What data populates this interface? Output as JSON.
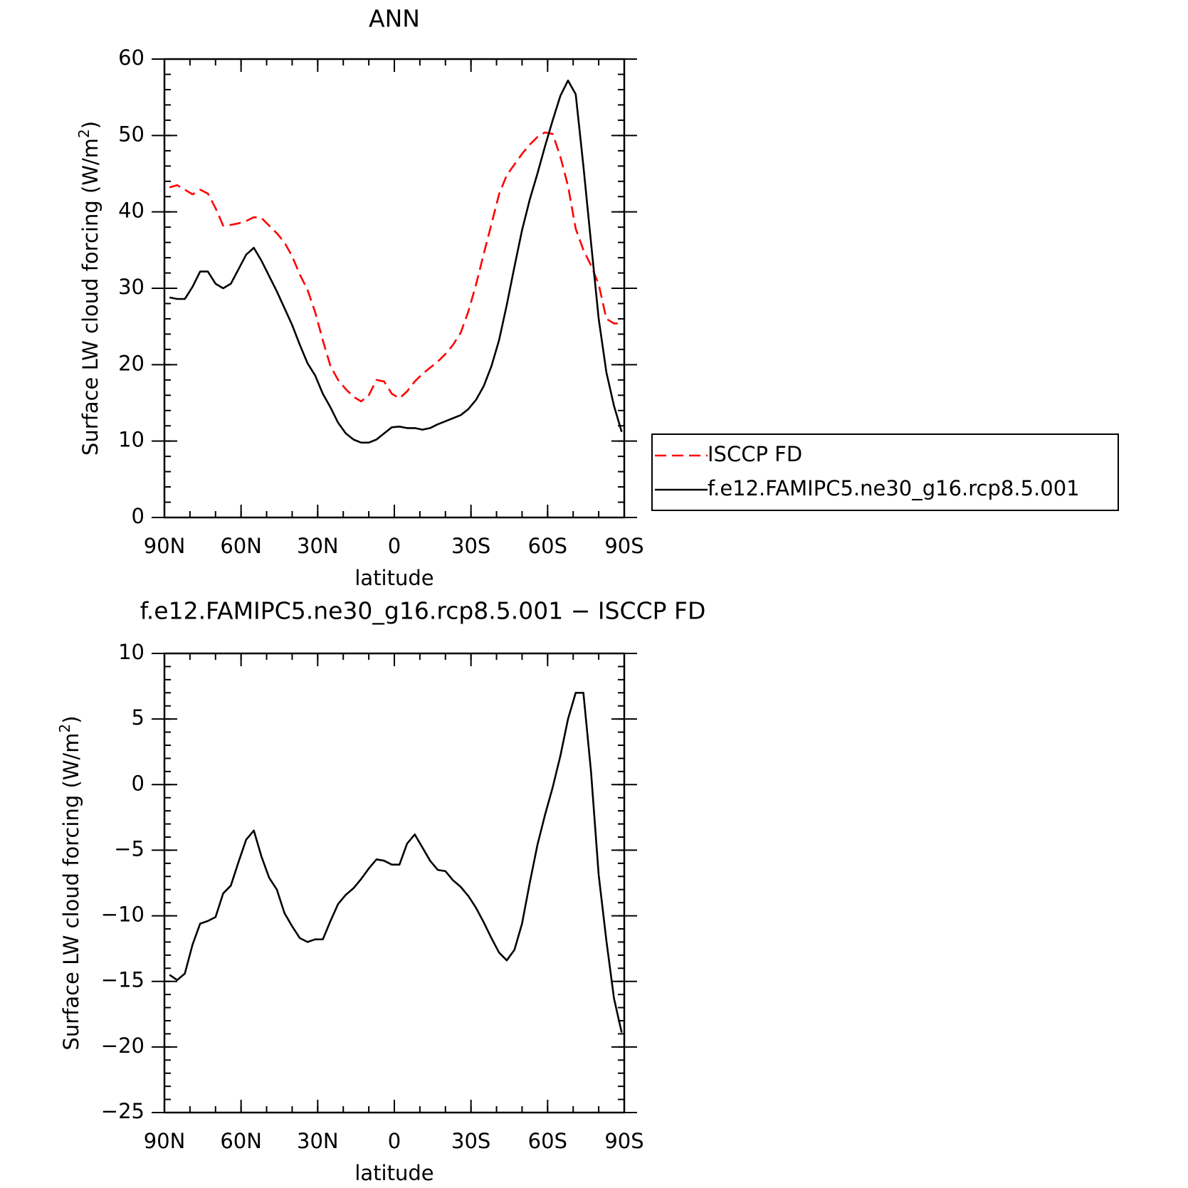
{
  "chart_data": [
    {
      "type": "line",
      "title": "ANN",
      "xlabel": "latitude",
      "ylabel": "Surface LW cloud forcing (W/m",
      "ylabel_sup": "2",
      "ylabel_tail": ")",
      "xlim": [
        90,
        -90
      ],
      "ylim": [
        0,
        60
      ],
      "xticks": [
        90,
        60,
        30,
        0,
        -30,
        -60,
        -90
      ],
      "xtick_labels": [
        "90N",
        "60N",
        "30N",
        "0",
        "30S",
        "60S",
        "90S"
      ],
      "yticks": [
        0,
        10,
        20,
        30,
        40,
        50,
        60
      ],
      "ytick_labels": [
        "0",
        "10",
        "20",
        "30",
        "40",
        "50",
        "60"
      ],
      "legend_position": "right",
      "series": [
        {
          "name": "ISCCP FD",
          "color": "#ff0000",
          "dash": "dashed",
          "x": [
            88,
            85,
            82,
            79,
            76,
            73,
            70,
            67,
            64,
            61,
            58,
            55,
            52,
            49,
            46,
            43,
            40,
            37,
            34,
            31,
            28,
            25,
            22,
            19,
            16,
            13,
            10,
            7,
            4,
            1,
            -2,
            -5,
            -8,
            -11,
            -14,
            -17,
            -20,
            -23,
            -26,
            -29,
            -32,
            -35,
            -38,
            -41,
            -44,
            -47,
            -50,
            -53,
            -56,
            -59,
            -62,
            -65,
            -68,
            -71,
            -74,
            -77,
            -80,
            -83,
            -86,
            -89
          ],
          "y": [
            43.2,
            43.5,
            42.9,
            42.3,
            42.9,
            42.4,
            40.5,
            38.2,
            38.3,
            38.5,
            38.8,
            39.3,
            39.2,
            38.2,
            37.2,
            36.0,
            34.2,
            31.8,
            29.8,
            26.9,
            23.2,
            19.8,
            18.0,
            16.8,
            15.8,
            15.2,
            16.0,
            18.0,
            17.8,
            16.2,
            15.6,
            16.5,
            17.8,
            18.8,
            19.6,
            20.4,
            21.4,
            22.6,
            24.2,
            27.0,
            30.5,
            34.5,
            38.4,
            42.3,
            44.8,
            46.2,
            47.6,
            48.8,
            49.8,
            50.4,
            50.2,
            47.2,
            43.4,
            37.8,
            35.0,
            33.0,
            30.5,
            26.0,
            25.4,
            25.4
          ]
        },
        {
          "name": "f.e12.FAMIPC5.ne30_g16.rcp8.5.001",
          "color": "#000000",
          "dash": "solid",
          "x": [
            88,
            85,
            82,
            79,
            76,
            73,
            70,
            67,
            64,
            61,
            58,
            55,
            52,
            49,
            46,
            43,
            40,
            37,
            34,
            31,
            28,
            25,
            22,
            19,
            16,
            13,
            10,
            7,
            4,
            1,
            -2,
            -5,
            -8,
            -11,
            -14,
            -17,
            -20,
            -23,
            -26,
            -29,
            -32,
            -35,
            -38,
            -41,
            -44,
            -47,
            -50,
            -53,
            -56,
            -59,
            -62,
            -65,
            -68,
            -71,
            -74,
            -77,
            -80,
            -83,
            -86,
            -89
          ],
          "y": [
            28.8,
            28.6,
            28.6,
            30.2,
            32.2,
            32.2,
            30.6,
            30.0,
            30.6,
            32.5,
            34.4,
            35.3,
            33.6,
            31.6,
            29.6,
            27.4,
            25.2,
            22.6,
            20.2,
            18.6,
            16.2,
            14.4,
            12.4,
            11.0,
            10.2,
            9.8,
            9.8,
            10.2,
            11.0,
            11.8,
            11.9,
            11.7,
            11.7,
            11.5,
            11.7,
            12.2,
            12.6,
            13.0,
            13.4,
            14.2,
            15.4,
            17.2,
            19.8,
            23.2,
            27.8,
            32.8,
            37.6,
            41.6,
            45.0,
            48.6,
            52.0,
            55.2,
            57.2,
            55.4,
            46.0,
            36.0,
            26.0,
            19.0,
            14.6,
            11.2
          ]
        }
      ]
    },
    {
      "type": "line",
      "title": "f.e12.FAMIPC5.ne30_g16.rcp8.5.001 − ISCCP FD",
      "xlabel": "latitude",
      "ylabel": "Surface LW cloud forcing (W/m",
      "ylabel_sup": "2",
      "ylabel_tail": ")",
      "xlim": [
        90,
        -90
      ],
      "ylim": [
        -25,
        10
      ],
      "xticks": [
        90,
        60,
        30,
        0,
        -30,
        -60,
        -90
      ],
      "xtick_labels": [
        "90N",
        "60N",
        "30N",
        "0",
        "30S",
        "60S",
        "90S"
      ],
      "yticks": [
        -25,
        -20,
        -15,
        -10,
        -5,
        0,
        5,
        10
      ],
      "ytick_labels": [
        "−25",
        "−20",
        "−15",
        "−10",
        "−5",
        "0",
        "5",
        "10"
      ],
      "series": [
        {
          "color": "#000000",
          "dash": "solid",
          "x": [
            88,
            85,
            82,
            79,
            76,
            73,
            70,
            67,
            64,
            61,
            58,
            55,
            52,
            49,
            46,
            43,
            40,
            37,
            34,
            31,
            28,
            25,
            22,
            19,
            16,
            13,
            10,
            7,
            4,
            1,
            -2,
            -5,
            -8,
            -11,
            -14,
            -17,
            -20,
            -23,
            -26,
            -29,
            -32,
            -35,
            -38,
            -41,
            -44,
            -47,
            -50,
            -53,
            -56,
            -59,
            -62,
            -65,
            -68,
            -71,
            -74,
            -77,
            -80,
            -83,
            -86,
            -89
          ],
          "y": [
            -14.5,
            -14.9,
            -14.4,
            -12.2,
            -10.6,
            -10.4,
            -10.1,
            -8.3,
            -7.7,
            -5.9,
            -4.2,
            -3.5,
            -5.5,
            -7.1,
            -8.0,
            -9.8,
            -10.8,
            -11.7,
            -12.0,
            -11.8,
            -11.8,
            -10.4,
            -9.1,
            -8.4,
            -7.9,
            -7.2,
            -6.4,
            -5.7,
            -5.8,
            -6.1,
            -6.1,
            -4.5,
            -3.8,
            -4.8,
            -5.8,
            -6.5,
            -6.6,
            -7.3,
            -7.8,
            -8.5,
            -9.4,
            -10.5,
            -11.7,
            -12.8,
            -13.4,
            -12.6,
            -10.6,
            -7.5,
            -4.6,
            -2.3,
            -0.2,
            2.2,
            5.0,
            7.0,
            7.0,
            1.0,
            -6.9,
            -11.9,
            -16.3,
            -18.9
          ]
        }
      ]
    }
  ]
}
